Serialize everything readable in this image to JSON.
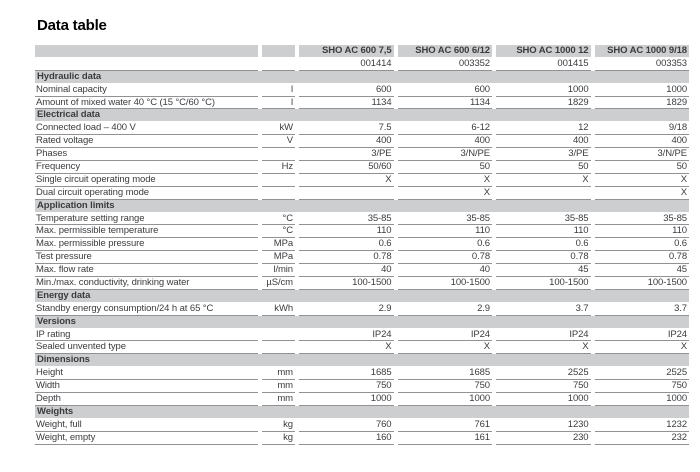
{
  "title": "Data table",
  "colors": {
    "band_gray": "#cdced0",
    "rule_gray": "#909295",
    "text_gray": "#3a3c3e",
    "title_black": "#000000"
  },
  "table": {
    "models": [
      "SHO AC 600 7,5",
      "SHO AC 600 6/12",
      "SHO AC 1000 12",
      "SHO AC 1000 9/18"
    ],
    "product_numbers": [
      "001414",
      "003352",
      "001415",
      "003353"
    ],
    "sections": [
      {
        "title": "Hydraulic data",
        "rows": [
          {
            "label": "Nominal capacity",
            "unit": "l",
            "values": [
              "600",
              "600",
              "1000",
              "1000"
            ]
          },
          {
            "label": "Amount of mixed water 40 °C (15 °C/60 °C)",
            "unit": "l",
            "values": [
              "1134",
              "1134",
              "1829",
              "1829"
            ]
          }
        ]
      },
      {
        "title": "Electrical data",
        "rows": [
          {
            "label": "Connected load – 400 V",
            "unit": "kW",
            "values": [
              "7.5",
              "6-12",
              "12",
              "9/18"
            ]
          },
          {
            "label": "Rated voltage",
            "unit": "V",
            "values": [
              "400",
              "400",
              "400",
              "400"
            ]
          },
          {
            "label": "Phases",
            "unit": "",
            "values": [
              "3/PE",
              "3/N/PE",
              "3/PE",
              "3/N/PE"
            ]
          },
          {
            "label": "Frequency",
            "unit": "Hz",
            "values": [
              "50/60",
              "50",
              "50",
              "50"
            ]
          },
          {
            "label": "Single circuit operating mode",
            "unit": "",
            "values": [
              "X",
              "X",
              "X",
              "X"
            ]
          },
          {
            "label": "Dual circuit operating mode",
            "unit": "",
            "values": [
              "",
              "X",
              "",
              "X"
            ]
          }
        ]
      },
      {
        "title": "Application limits",
        "rows": [
          {
            "label": "Temperature setting range",
            "unit": "°C",
            "values": [
              "35-85",
              "35-85",
              "35-85",
              "35-85"
            ]
          },
          {
            "label": "Max. permissible temperature",
            "unit": "°C",
            "values": [
              "110",
              "110",
              "110",
              "110"
            ]
          },
          {
            "label": "Max. permissible pressure",
            "unit": "MPa",
            "values": [
              "0.6",
              "0.6",
              "0.6",
              "0.6"
            ]
          },
          {
            "label": "Test pressure",
            "unit": "MPa",
            "values": [
              "0.78",
              "0.78",
              "0.78",
              "0.78"
            ]
          },
          {
            "label": "Max. flow rate",
            "unit": "l/min",
            "values": [
              "40",
              "40",
              "45",
              "45"
            ]
          },
          {
            "label": "Min./max. conductivity, drinking water",
            "unit": "µS/cm",
            "values": [
              "100-1500",
              "100-1500",
              "100-1500",
              "100-1500"
            ]
          }
        ]
      },
      {
        "title": "Energy data",
        "rows": [
          {
            "label": "Standby energy consumption/24 h at 65 °C",
            "unit": "kWh",
            "values": [
              "2.9",
              "2.9",
              "3.7",
              "3.7"
            ]
          }
        ]
      },
      {
        "title": "Versions",
        "rows": [
          {
            "label": "IP rating",
            "unit": "",
            "values": [
              "IP24",
              "IP24",
              "IP24",
              "IP24"
            ]
          },
          {
            "label": "Sealed unvented type",
            "unit": "",
            "values": [
              "X",
              "X",
              "X",
              "X"
            ]
          }
        ]
      },
      {
        "title": "Dimensions",
        "rows": [
          {
            "label": "Height",
            "unit": "mm",
            "values": [
              "1685",
              "1685",
              "2525",
              "2525"
            ]
          },
          {
            "label": "Width",
            "unit": "mm",
            "values": [
              "750",
              "750",
              "750",
              "750"
            ]
          },
          {
            "label": "Depth",
            "unit": "mm",
            "values": [
              "1000",
              "1000",
              "1000",
              "1000"
            ]
          }
        ]
      },
      {
        "title": "Weights",
        "rows": [
          {
            "label": "Weight, full",
            "unit": "kg",
            "values": [
              "760",
              "761",
              "1230",
              "1232"
            ]
          },
          {
            "label": "Weight, empty",
            "unit": "kg",
            "values": [
              "160",
              "161",
              "230",
              "232"
            ]
          }
        ]
      }
    ]
  }
}
